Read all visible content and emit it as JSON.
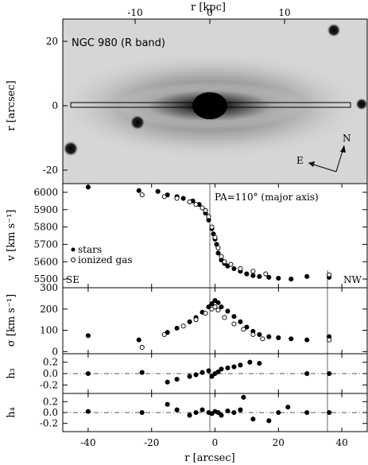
{
  "chart_data": [
    {
      "panel": "image",
      "type": "other",
      "title": "NGC 980 (R band)",
      "xlabel_top": "r [kpc]",
      "ylabel": "r [arcsec]",
      "x_top_ticks": [
        "-10",
        "0",
        "10"
      ],
      "y_ticks": [
        "20",
        "0",
        "-20"
      ],
      "compass": {
        "north": "N",
        "east": "E"
      },
      "colors": {
        "background": "#d9d9d9",
        "galaxy_core": "#000000"
      }
    },
    {
      "panel": "velocity",
      "type": "scatter",
      "ylabel": "v [km s⁻¹]",
      "annotation": "PA=110° (major axis)",
      "side_left": "SE",
      "side_right": "NW",
      "ylim": [
        5450,
        6050
      ],
      "xlim": [
        -48,
        48
      ],
      "y_ticks": [
        5500,
        5600,
        5700,
        5800,
        5900,
        6000
      ],
      "series": [
        {
          "name": "stars",
          "marker": "filled",
          "x": [
            -40,
            -24,
            -18,
            -15,
            -12,
            -10,
            -7,
            -5,
            -3,
            -2,
            -1,
            -0.5,
            0,
            0.5,
            1,
            2,
            3,
            4,
            6,
            8,
            10,
            12,
            14,
            17,
            20,
            24,
            29,
            36
          ],
          "y": [
            6030,
            6010,
            6005,
            5985,
            5975,
            5965,
            5950,
            5930,
            5880,
            5840,
            5790,
            5760,
            5730,
            5700,
            5650,
            5610,
            5590,
            5575,
            5560,
            5545,
            5530,
            5520,
            5515,
            5510,
            5505,
            5500,
            5515,
            5510
          ]
        },
        {
          "name": "ionized gas",
          "marker": "open",
          "x": [
            -23,
            -16,
            -12,
            -8,
            -6,
            -4,
            -3,
            -2,
            -1,
            0,
            1,
            2,
            3,
            5,
            8,
            12,
            16,
            36
          ],
          "y": [
            5985,
            5975,
            5965,
            5945,
            5930,
            5910,
            5895,
            5860,
            5800,
            5740,
            5680,
            5630,
            5600,
            5585,
            5560,
            5545,
            5530,
            5525
          ]
        }
      ]
    },
    {
      "panel": "sigma",
      "type": "scatter",
      "ylabel": "σ [km s⁻¹]",
      "ylim": [
        -10,
        300
      ],
      "y_ticks": [
        0,
        100,
        200,
        300
      ],
      "series": [
        {
          "name": "stars",
          "marker": "filled",
          "x": [
            -40,
            -24,
            -15,
            -12,
            -8,
            -6,
            -4,
            -2,
            -1,
            0,
            1,
            2,
            4,
            6,
            8,
            10,
            12,
            14,
            17,
            20,
            24,
            29,
            36
          ],
          "y": [
            75,
            55,
            90,
            110,
            140,
            160,
            185,
            210,
            225,
            240,
            230,
            210,
            190,
            165,
            140,
            115,
            95,
            80,
            70,
            65,
            60,
            55,
            70
          ]
        },
        {
          "name": "ionized gas",
          "marker": "open",
          "x": [
            -23,
            -16,
            -10,
            -6,
            -3,
            -1,
            0,
            1,
            3,
            6,
            9,
            12,
            15,
            36
          ],
          "y": [
            20,
            80,
            120,
            150,
            180,
            200,
            210,
            195,
            160,
            130,
            105,
            80,
            60,
            55
          ]
        }
      ]
    },
    {
      "panel": "h3",
      "type": "scatter",
      "ylabel": "h₃",
      "ylim": [
        -0.35,
        0.35
      ],
      "y_ticks": [
        "0.2",
        "0.0",
        "-0.2"
      ],
      "series": [
        {
          "name": "stars",
          "marker": "filled",
          "x": [
            -40,
            -23,
            -15,
            -12,
            -8,
            -6,
            -4,
            -2,
            -1,
            0,
            1,
            2,
            4,
            6,
            8,
            11,
            14,
            29,
            36
          ],
          "y": [
            0.0,
            0.02,
            -0.15,
            -0.1,
            -0.05,
            -0.02,
            0.02,
            0.05,
            -0.05,
            0.0,
            0.03,
            0.08,
            0.1,
            0.12,
            0.15,
            0.2,
            0.18,
            0.0,
            0.0
          ]
        }
      ]
    },
    {
      "panel": "h4",
      "type": "scatter",
      "ylabel": "h₄",
      "xlabel": "r [arcsec]",
      "ylim": [
        -0.35,
        0.35
      ],
      "y_ticks": [
        "0.2",
        "0.0",
        "-0.2"
      ],
      "x_ticks": [
        "-40",
        "-20",
        "0",
        "20",
        "40"
      ],
      "series": [
        {
          "name": "stars",
          "marker": "filled",
          "x": [
            -40,
            -23,
            -15,
            -12,
            -8,
            -6,
            -4,
            -2,
            -1,
            0,
            1,
            2,
            4,
            6,
            8,
            9,
            12,
            17,
            20,
            23,
            29,
            36
          ],
          "y": [
            0.02,
            0.0,
            0.15,
            0.05,
            -0.05,
            0.0,
            0.05,
            0.0,
            -0.02,
            0.02,
            0.0,
            -0.05,
            0.03,
            0.0,
            0.05,
            0.28,
            -0.12,
            -0.15,
            0.0,
            0.1,
            0.0,
            0.0
          ]
        }
      ]
    }
  ],
  "legend": {
    "stars": "stars",
    "gas": "ionized gas"
  }
}
